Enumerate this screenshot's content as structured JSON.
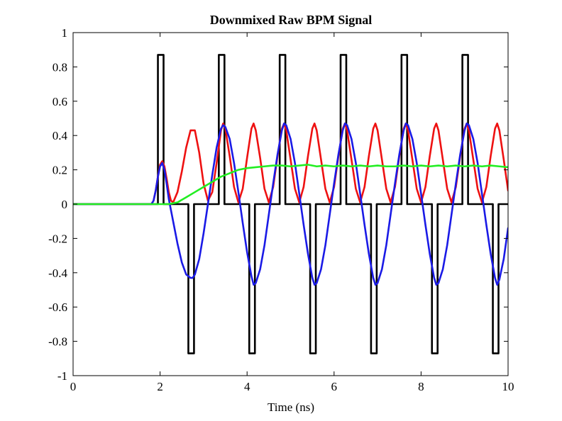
{
  "chart_data": {
    "type": "line",
    "title": "Downmixed Raw BPM Signal",
    "xlabel": "Time (ns)",
    "ylabel": "",
    "xlim": [
      0,
      10
    ],
    "ylim": [
      -1,
      1
    ],
    "x_ticks": [
      0,
      2,
      4,
      6,
      8,
      10
    ],
    "x_tick_labels": [
      "0",
      "2",
      "4",
      "6",
      "8",
      "10"
    ],
    "y_ticks": [
      1,
      0.8,
      0.6,
      0.4,
      0.2,
      0,
      -0.2,
      -0.4,
      -0.6,
      -0.8,
      -1
    ],
    "y_tick_labels": [
      "1",
      "0.8",
      "0.6",
      "0.4",
      "0.2",
      "0",
      "-0.2",
      "-0.4",
      "-0.6",
      "-0.8",
      "-1"
    ],
    "grid": false,
    "series": [
      {
        "color": "#000000",
        "style": "step",
        "x": [
          0,
          1.95,
          1.95,
          2.08,
          2.08,
          2.65,
          2.65,
          2.78,
          2.78,
          3.35,
          3.35,
          3.48,
          3.48,
          4.05,
          4.05,
          4.18,
          4.18,
          4.75,
          4.75,
          4.88,
          4.88,
          5.45,
          5.45,
          5.58,
          5.58,
          6.15,
          6.15,
          6.28,
          6.28,
          6.85,
          6.85,
          6.98,
          6.98,
          7.55,
          7.55,
          7.68,
          7.68,
          8.25,
          8.25,
          8.38,
          8.38,
          8.95,
          8.95,
          9.08,
          9.08,
          9.65,
          9.65,
          9.78,
          9.78,
          10
        ],
        "y": [
          0,
          0,
          0.87,
          0.87,
          0,
          0,
          -0.87,
          -0.87,
          0,
          0,
          0.87,
          0.87,
          0,
          0,
          -0.87,
          -0.87,
          0,
          0,
          0.87,
          0.87,
          0,
          0,
          -0.87,
          -0.87,
          0,
          0,
          0.87,
          0.87,
          0,
          0,
          -0.87,
          -0.87,
          0,
          0,
          0.87,
          0.87,
          0,
          0,
          -0.87,
          -0.87,
          0,
          0,
          0.87,
          0.87,
          0,
          0,
          -0.87,
          -0.87,
          0,
          0
        ]
      },
      {
        "color": "#ee1111",
        "x": [
          0,
          1.8,
          1.85,
          1.9,
          1.95,
          2.0,
          2.05,
          2.1,
          2.15,
          2.2,
          2.25,
          2.3,
          2.4,
          2.5,
          2.6,
          2.7,
          2.8,
          2.9,
          3.0,
          3.1,
          3.2,
          3.3,
          3.4,
          3.45,
          3.5,
          3.6,
          3.7,
          3.8,
          3.9,
          4.0,
          4.1,
          4.15,
          4.2,
          4.3,
          4.4,
          4.5,
          4.6,
          4.7,
          4.8,
          4.85,
          4.9,
          5.0,
          5.1,
          5.2,
          5.3,
          5.4,
          5.5,
          5.55,
          5.6,
          5.7,
          5.8,
          5.9,
          6.0,
          6.1,
          6.2,
          6.25,
          6.3,
          6.4,
          6.5,
          6.6,
          6.7,
          6.8,
          6.9,
          6.95,
          7.0,
          7.1,
          7.2,
          7.3,
          7.4,
          7.5,
          7.6,
          7.65,
          7.7,
          7.8,
          7.9,
          8.0,
          8.1,
          8.2,
          8.3,
          8.35,
          8.4,
          8.5,
          8.6,
          8.7,
          8.8,
          8.9,
          9.0,
          9.05,
          9.1,
          9.2,
          9.3,
          9.4,
          9.5,
          9.6,
          9.7,
          9.75,
          9.8,
          9.9,
          10.0
        ],
        "y": [
          0,
          0,
          0.02,
          0.08,
          0.16,
          0.23,
          0.25,
          0.22,
          0.15,
          0.07,
          0.02,
          0.01,
          0.07,
          0.19,
          0.33,
          0.43,
          0.43,
          0.3,
          0.12,
          0.02,
          0.07,
          0.24,
          0.43,
          0.47,
          0.44,
          0.28,
          0.1,
          0.01,
          0.09,
          0.27,
          0.44,
          0.47,
          0.43,
          0.27,
          0.09,
          0.01,
          0.1,
          0.28,
          0.44,
          0.47,
          0.43,
          0.26,
          0.09,
          0.01,
          0.1,
          0.28,
          0.44,
          0.47,
          0.43,
          0.26,
          0.09,
          0.01,
          0.1,
          0.28,
          0.44,
          0.47,
          0.43,
          0.26,
          0.09,
          0.01,
          0.1,
          0.28,
          0.44,
          0.47,
          0.43,
          0.26,
          0.09,
          0.01,
          0.1,
          0.28,
          0.44,
          0.47,
          0.43,
          0.26,
          0.09,
          0.01,
          0.1,
          0.28,
          0.44,
          0.47,
          0.43,
          0.26,
          0.09,
          0.01,
          0.1,
          0.28,
          0.44,
          0.47,
          0.43,
          0.26,
          0.09,
          0.01,
          0.1,
          0.28,
          0.44,
          0.47,
          0.43,
          0.26,
          0.08
        ]
      },
      {
        "color": "#1a1ae6",
        "x": [
          0,
          1.8,
          1.85,
          1.9,
          1.95,
          2.0,
          2.05,
          2.1,
          2.15,
          2.2,
          2.3,
          2.4,
          2.5,
          2.6,
          2.7,
          2.75,
          2.8,
          2.9,
          3.0,
          3.1,
          3.2,
          3.3,
          3.4,
          3.45,
          3.5,
          3.6,
          3.7,
          3.8,
          3.9,
          4.0,
          4.1,
          4.15,
          4.2,
          4.3,
          4.4,
          4.5,
          4.6,
          4.7,
          4.8,
          4.85,
          4.9,
          5.0,
          5.1,
          5.2,
          5.3,
          5.4,
          5.5,
          5.55,
          5.6,
          5.7,
          5.8,
          5.9,
          6.0,
          6.1,
          6.2,
          6.25,
          6.3,
          6.4,
          6.5,
          6.6,
          6.7,
          6.8,
          6.9,
          6.95,
          7.0,
          7.1,
          7.2,
          7.3,
          7.4,
          7.5,
          7.6,
          7.65,
          7.7,
          7.8,
          7.9,
          8.0,
          8.1,
          8.2,
          8.3,
          8.35,
          8.4,
          8.5,
          8.6,
          8.7,
          8.8,
          8.9,
          9.0,
          9.05,
          9.1,
          9.2,
          9.3,
          9.4,
          9.5,
          9.6,
          9.7,
          9.75,
          9.8,
          9.9,
          10.0
        ],
        "y": [
          0,
          0,
          0.02,
          0.08,
          0.16,
          0.22,
          0.24,
          0.2,
          0.12,
          0.03,
          -0.1,
          -0.23,
          -0.34,
          -0.41,
          -0.43,
          -0.43,
          -0.41,
          -0.32,
          -0.17,
          0.0,
          0.17,
          0.33,
          0.44,
          0.46,
          0.45,
          0.38,
          0.24,
          0.07,
          -0.11,
          -0.28,
          -0.42,
          -0.47,
          -0.46,
          -0.38,
          -0.24,
          -0.06,
          0.12,
          0.29,
          0.43,
          0.47,
          0.46,
          0.38,
          0.24,
          0.06,
          -0.12,
          -0.29,
          -0.43,
          -0.47,
          -0.46,
          -0.38,
          -0.24,
          -0.06,
          0.12,
          0.29,
          0.43,
          0.47,
          0.46,
          0.38,
          0.24,
          0.06,
          -0.12,
          -0.29,
          -0.43,
          -0.47,
          -0.46,
          -0.38,
          -0.24,
          -0.06,
          0.12,
          0.29,
          0.43,
          0.47,
          0.46,
          0.38,
          0.24,
          0.06,
          -0.12,
          -0.29,
          -0.43,
          -0.47,
          -0.46,
          -0.38,
          -0.24,
          -0.06,
          0.12,
          0.29,
          0.43,
          0.47,
          0.46,
          0.38,
          0.24,
          0.06,
          -0.12,
          -0.29,
          -0.43,
          -0.47,
          -0.44,
          -0.32,
          -0.14
        ]
      },
      {
        "color": "#22ee22",
        "x": [
          0,
          2.0,
          2.2,
          2.4,
          2.6,
          2.8,
          3.0,
          3.2,
          3.4,
          3.6,
          3.8,
          4.0,
          4.2,
          4.4,
          4.6,
          4.8,
          5.0,
          5.2,
          5.4,
          5.6,
          5.8,
          6.0,
          6.2,
          6.4,
          6.6,
          6.8,
          7.0,
          7.2,
          7.4,
          7.6,
          7.8,
          8.0,
          8.2,
          8.4,
          8.6,
          8.8,
          9.0,
          9.2,
          9.4,
          9.6,
          9.8,
          10.0
        ],
        "y": [
          0,
          0,
          0.0,
          0.01,
          0.04,
          0.07,
          0.1,
          0.13,
          0.16,
          0.18,
          0.2,
          0.21,
          0.215,
          0.22,
          0.225,
          0.225,
          0.22,
          0.225,
          0.23,
          0.22,
          0.225,
          0.22,
          0.225,
          0.22,
          0.225,
          0.22,
          0.225,
          0.22,
          0.22,
          0.225,
          0.22,
          0.225,
          0.22,
          0.225,
          0.22,
          0.225,
          0.22,
          0.225,
          0.22,
          0.225,
          0.22,
          0.215
        ]
      }
    ]
  }
}
